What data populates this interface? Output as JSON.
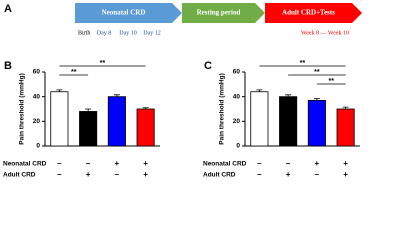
{
  "diagram": {
    "label": "A",
    "stages": [
      {
        "text": "Neonatal CRD",
        "color": "#5b9bd5"
      },
      {
        "text": "Resting period",
        "color": "#70ad47"
      },
      {
        "text": "Adult CRD+Tests",
        "color": "#ff0000"
      }
    ],
    "birth": "Birth",
    "days": [
      "Day 8",
      "Day 10",
      "Day 12"
    ],
    "weeks": "Week 8 — Week 10"
  },
  "chart_data": [
    {
      "type": "bar",
      "panel": "B",
      "ylabel": "Pain threshold (mmHg)",
      "ylim": [
        0,
        60
      ],
      "yticks": [
        0,
        20,
        40,
        60
      ],
      "values": [
        44,
        28,
        40,
        30
      ],
      "errors": [
        1.5,
        2,
        1.5,
        1
      ],
      "colors": [
        "#ffffff",
        "#000000",
        "#0000ff",
        "#ff0000"
      ],
      "row_labels": [
        "Neonatal CRD",
        "Adult CRD"
      ],
      "conditions": [
        [
          "–",
          "–",
          "+",
          "+"
        ],
        [
          "–",
          "+",
          "–",
          "+"
        ]
      ],
      "comparisons": [
        {
          "bars": [
            0,
            3
          ],
          "label": "**"
        },
        {
          "bars": [
            0,
            1
          ],
          "label": "**"
        }
      ]
    },
    {
      "type": "bar",
      "panel": "C",
      "ylabel": "Pain threshold (mmHg)",
      "ylim": [
        0,
        60
      ],
      "yticks": [
        0,
        20,
        40,
        60
      ],
      "values": [
        44,
        40,
        37,
        30
      ],
      "errors": [
        1.5,
        1.5,
        1.5,
        1.5
      ],
      "colors": [
        "#ffffff",
        "#000000",
        "#0000ff",
        "#ff0000"
      ],
      "row_labels": [
        "Neonatal CRD",
        "Adult CRD"
      ],
      "conditions": [
        [
          "–",
          "–",
          "+",
          "+"
        ],
        [
          "–",
          "+",
          "–",
          "+"
        ]
      ],
      "comparisons": [
        {
          "bars": [
            0,
            3
          ],
          "label": "**"
        },
        {
          "bars": [
            1,
            3
          ],
          "label": "**"
        },
        {
          "bars": [
            2,
            3
          ],
          "label": "**"
        }
      ]
    }
  ]
}
